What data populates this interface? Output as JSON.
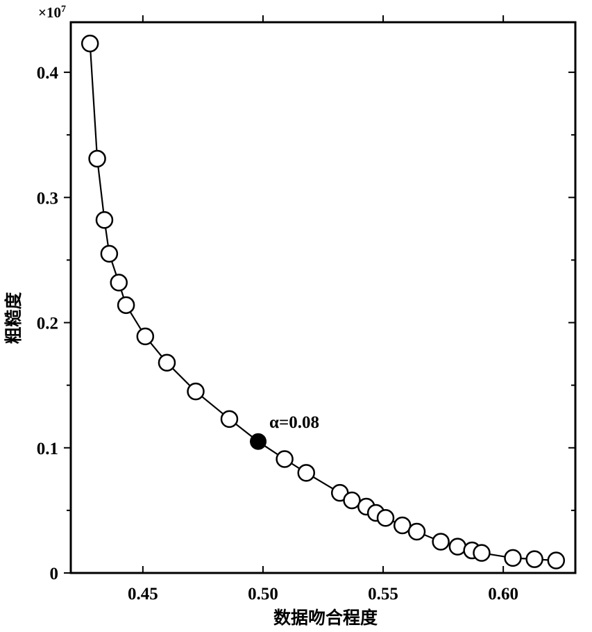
{
  "chart_data": {
    "type": "scatter",
    "xlabel": "数据吻合程度",
    "ylabel": "粗糙度",
    "y_scale_label": "×10",
    "y_scale_exponent": "7",
    "xlim": [
      0.42,
      0.63
    ],
    "ylim": [
      0,
      0.44
    ],
    "x_ticks": [
      0.45,
      0.5,
      0.55,
      0.6
    ],
    "x_tick_labels": [
      "0.45",
      "0.50",
      "0.55",
      "0.60"
    ],
    "y_ticks": [
      0,
      0.1,
      0.2,
      0.3,
      0.4
    ],
    "y_tick_labels": [
      "0",
      "0.1",
      "0.2",
      "0.3",
      "0.4"
    ],
    "grid": false,
    "series": [
      {
        "marker": "open-circle",
        "line": true,
        "x": [
          0.428,
          0.431,
          0.434,
          0.436,
          0.44,
          0.443,
          0.451,
          0.46,
          0.472,
          0.486,
          0.498,
          0.509,
          0.518,
          0.532,
          0.537,
          0.543,
          0.547,
          0.551,
          0.558,
          0.564,
          0.574,
          0.581,
          0.587,
          0.591,
          0.604,
          0.613,
          0.622
        ],
        "y": [
          0.423,
          0.331,
          0.282,
          0.255,
          0.232,
          0.214,
          0.189,
          0.168,
          0.145,
          0.123,
          0.105,
          0.091,
          0.08,
          0.064,
          0.058,
          0.053,
          0.048,
          0.044,
          0.038,
          0.033,
          0.025,
          0.021,
          0.018,
          0.016,
          0.012,
          0.011,
          0.01
        ]
      }
    ],
    "highlight": {
      "x": 0.498,
      "y": 0.105,
      "label": "α=0.08",
      "marker": "filled-circle"
    },
    "colors": {
      "line": "#000000",
      "marker_fill_open": "#ffffff",
      "marker_fill_highlight": "#000000"
    }
  }
}
